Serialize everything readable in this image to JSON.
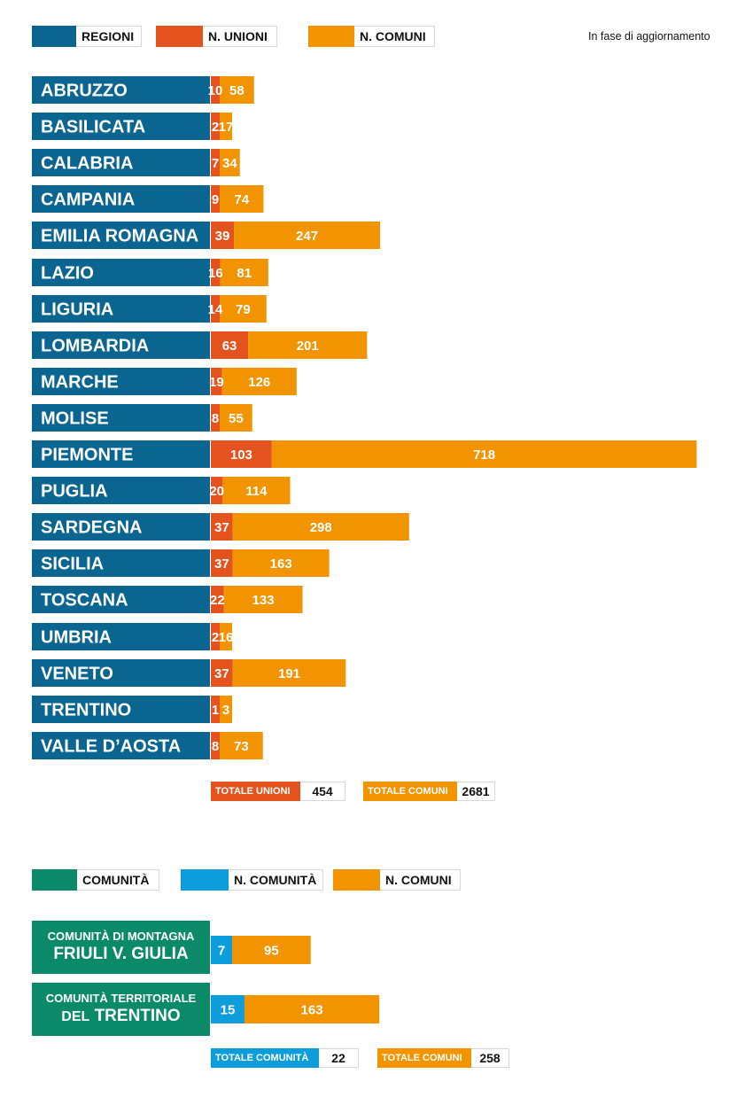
{
  "note": "In fase di aggiornamento",
  "colors": {
    "regioni": "#0a6591",
    "unioni": "#e4521d",
    "comuni": "#f29300",
    "comunita": "#0b8a6a",
    "n_comunita": "#0d9ddb"
  },
  "legend_top": {
    "regioni": "REGIONI",
    "unioni": "N. UNIONI",
    "comuni": "N. COMUNI"
  },
  "totals_top": {
    "unioni_label": "TOTALE UNIONI",
    "unioni_value": "454",
    "comuni_label": "TOTALE COMUNI",
    "comuni_value": "2681"
  },
  "legend_bottom": {
    "comunita": "COMUNITÀ",
    "n_comunita": "N. COMUNITÀ",
    "comuni": "N. COMUNI"
  },
  "comunita": [
    {
      "line1": "COMUNITÀ DI MONTAGNA",
      "line2": "FRIULI V. GIULIA"
    },
    {
      "line1": "COMUNITÀ TERRITORIALE",
      "line2_pre": "DEL",
      "line2": "TRENTINO"
    }
  ],
  "totals_bottom": {
    "comunita_label": "TOTALE COMUNITÀ",
    "comunita_value": "22",
    "comuni_label": "TOTALE COMUNI",
    "comuni_value": "258"
  },
  "chart_data": [
    {
      "type": "bar",
      "orientation": "horizontal",
      "stacked": true,
      "categories": [
        "ABRUZZO",
        "BASILICATA",
        "CALABRIA",
        "CAMPANIA",
        "EMILIA ROMAGNA",
        "LAZIO",
        "LIGURIA",
        "LOMBARDIA",
        "MARCHE",
        "MOLISE",
        "PIEMONTE",
        "PUGLIA",
        "SARDEGNA",
        "SICILIA",
        "TOSCANA",
        "UMBRIA",
        "VENETO",
        "TRENTINO",
        "VALLE D’AOSTA"
      ],
      "series": [
        {
          "name": "N. UNIONI",
          "values": [
            10,
            2,
            7,
            9,
            39,
            16,
            14,
            63,
            19,
            8,
            103,
            20,
            37,
            37,
            22,
            2,
            37,
            1,
            8
          ]
        },
        {
          "name": "N. COMUNI",
          "values": [
            58,
            17,
            34,
            74,
            247,
            81,
            79,
            201,
            126,
            55,
            718,
            114,
            298,
            163,
            133,
            16,
            191,
            3,
            73
          ]
        }
      ],
      "legend_position": "top",
      "grid": false
    },
    {
      "type": "bar",
      "orientation": "horizontal",
      "stacked": true,
      "categories": [
        "COMUNITÀ DI MONTAGNA FRIULI V. GIULIA",
        "COMUNITÀ TERRITORIALE DEL TRENTINO"
      ],
      "series": [
        {
          "name": "N. COMUNITÀ",
          "values": [
            7,
            15
          ]
        },
        {
          "name": "N. COMUNI",
          "values": [
            95,
            163
          ]
        }
      ],
      "legend_position": "top",
      "grid": false
    }
  ]
}
